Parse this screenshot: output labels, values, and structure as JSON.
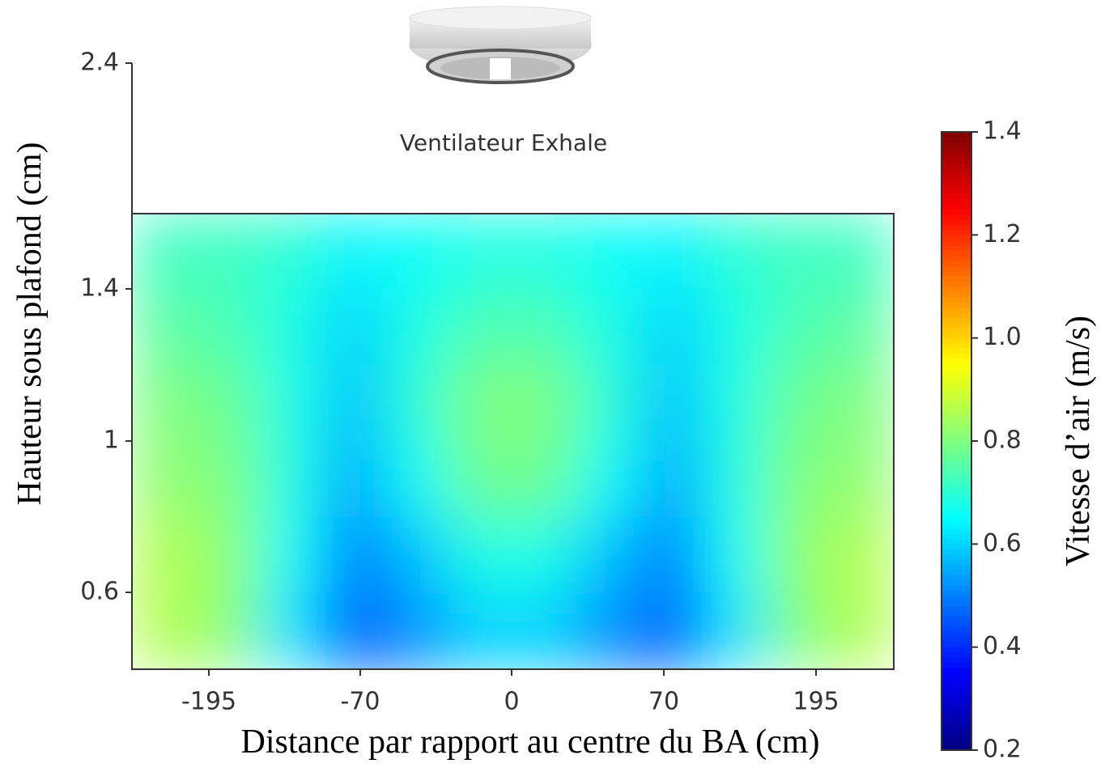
{
  "chart_data": {
    "type": "heatmap",
    "annotation": "Ventilateur Exhale",
    "xlabel": "Distance par rapport au centre du BA (cm)",
    "ylabel": "Hauteur sous plafond (cm)",
    "colorbar_label": "Vitesse d’air (m/s)",
    "colormap": "jet",
    "xticks": [
      -195,
      -70,
      0,
      70,
      195
    ],
    "yticks": [
      2.4,
      1.4,
      1,
      0.6
    ],
    "clim": [
      0.2,
      1.4
    ],
    "cticks": [
      0.2,
      0.4,
      0.6,
      0.8,
      {
        "value": 1,
        "label": "1.0"
      },
      1.2,
      1.4
    ],
    "z": [
      [
        0.72,
        0.72,
        0.7,
        0.64,
        0.66,
        0.68,
        0.68,
        0.66,
        0.64,
        0.7,
        0.72,
        0.72
      ],
      [
        0.76,
        0.74,
        0.68,
        0.6,
        0.68,
        0.74,
        0.74,
        0.68,
        0.6,
        0.68,
        0.74,
        0.76
      ],
      [
        0.8,
        0.78,
        0.68,
        0.58,
        0.7,
        0.8,
        0.8,
        0.7,
        0.58,
        0.68,
        0.78,
        0.8
      ],
      [
        0.82,
        0.8,
        0.68,
        0.55,
        0.66,
        0.78,
        0.78,
        0.66,
        0.55,
        0.68,
        0.8,
        0.82
      ],
      [
        0.86,
        0.82,
        0.66,
        0.5,
        0.58,
        0.68,
        0.68,
        0.58,
        0.5,
        0.66,
        0.82,
        0.86
      ],
      [
        0.86,
        0.82,
        0.62,
        0.45,
        0.52,
        0.6,
        0.6,
        0.52,
        0.45,
        0.62,
        0.8,
        0.86
      ]
    ]
  }
}
